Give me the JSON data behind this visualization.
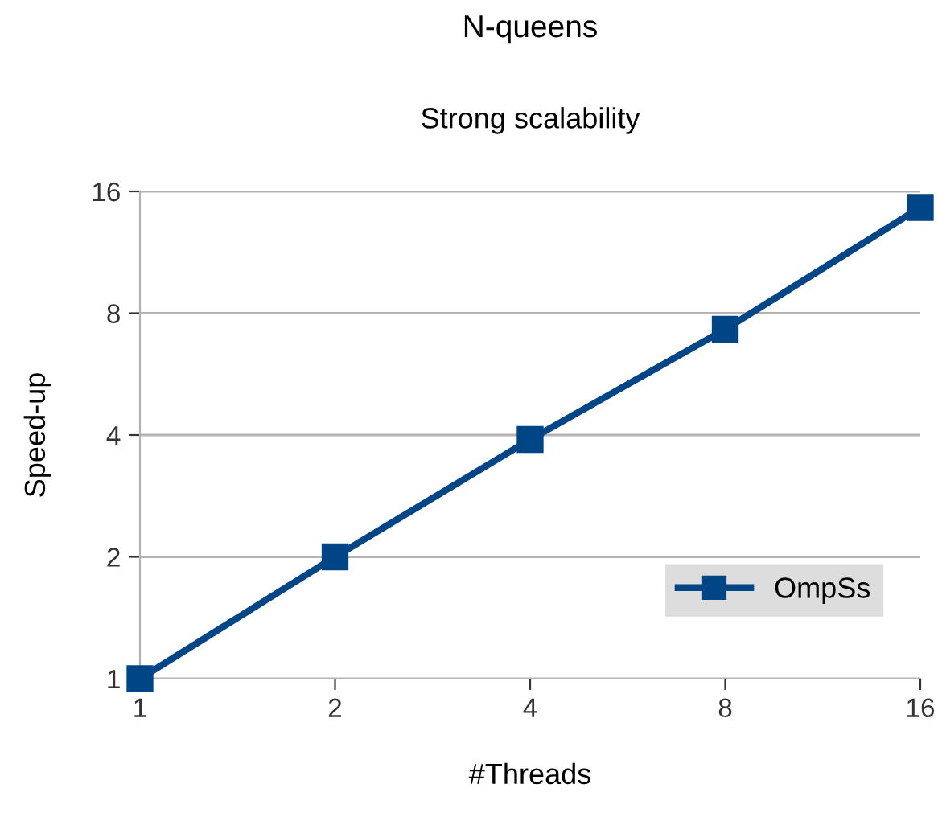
{
  "chart_data": {
    "type": "line",
    "title": "N-queens",
    "subtitle": "Strong scalability",
    "xlabel": "#Threads",
    "ylabel": "Speed-up",
    "x": [
      1,
      2,
      4,
      8,
      16
    ],
    "series": [
      {
        "name": "OmpSs",
        "color": "#004586",
        "values": [
          1,
          2,
          3.9,
          7.3,
          14.6
        ]
      }
    ],
    "log": "xy",
    "xlim": [
      1,
      16
    ],
    "ylim": [
      1,
      16
    ],
    "xticks": [
      1,
      2,
      4,
      8,
      16
    ],
    "yticks": [
      1,
      2,
      4,
      8,
      16
    ],
    "grid": "y",
    "legend": "bottom right",
    "marker": "square",
    "line_style": "solid"
  }
}
